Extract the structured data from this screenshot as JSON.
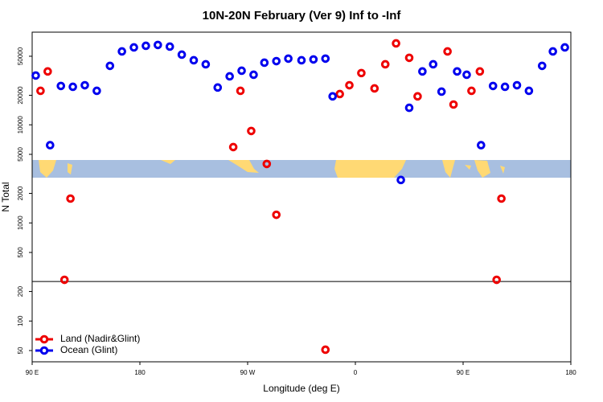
{
  "chart_data": {
    "type": "scatter",
    "title": "10N-20N February (Ver 9)   Inf to -Inf",
    "x_label": "Longitude (deg E)",
    "y_label": "N Total",
    "log_y": true,
    "xlim": [
      90,
      540
    ],
    "xticks": [
      {
        "value": 90,
        "label": "90 E"
      },
      180,
      {
        "value": 270,
        "label": "90 W"
      },
      {
        "value": 360,
        "label": "0"
      },
      {
        "value": 450,
        "label": "90 E"
      },
      {
        "value": 540,
        "label": "180"
      }
    ],
    "ylim": [
      38.4,
      88000
    ],
    "yticks": [
      50,
      100,
      200,
      500,
      1000,
      2000,
      5000,
      10000,
      20000,
      50000
    ],
    "reference_line": 253,
    "legend": "bottom-left",
    "series": [
      {
        "name": "Land (Nadir&Glint)",
        "color": "#ee0000",
        "x": [
          97,
          103,
          117,
          122,
          258,
          264,
          273,
          286,
          294,
          335,
          347,
          355,
          365,
          376,
          385,
          394,
          405,
          412,
          437,
          442,
          457,
          464,
          478,
          482
        ],
        "values": [
          22200,
          35000,
          263,
          1770,
          5930,
          22200,
          8650,
          3990,
          1210,
          51,
          20600,
          25300,
          33700,
          23500,
          41400,
          67600,
          48200,
          19500,
          56000,
          16100,
          22200,
          35000,
          263,
          1770
        ]
      },
      {
        "name": "Ocean (Glint)",
        "color": "#0000ee",
        "x": [
          93,
          105,
          114,
          124,
          134,
          144,
          155,
          165,
          175,
          185,
          195,
          205,
          215,
          225,
          235,
          245,
          255,
          265,
          275,
          284,
          294,
          304,
          315,
          325,
          335,
          341,
          398,
          405,
          416,
          425,
          432,
          445,
          453,
          465,
          475,
          485,
          495,
          505,
          516,
          525,
          535
        ],
        "values": [
          31800,
          6200,
          24900,
          24400,
          25300,
          22200,
          39900,
          56000,
          61500,
          63900,
          65200,
          62700,
          51900,
          45500,
          41400,
          24000,
          31200,
          35600,
          32400,
          43000,
          44600,
          47300,
          45500,
          46400,
          47300,
          19500,
          2740,
          14900,
          35000,
          41400,
          21800,
          35000,
          32400,
          6200,
          24900,
          24400,
          25300,
          22200,
          39900,
          56000,
          61500
        ]
      }
    ]
  }
}
